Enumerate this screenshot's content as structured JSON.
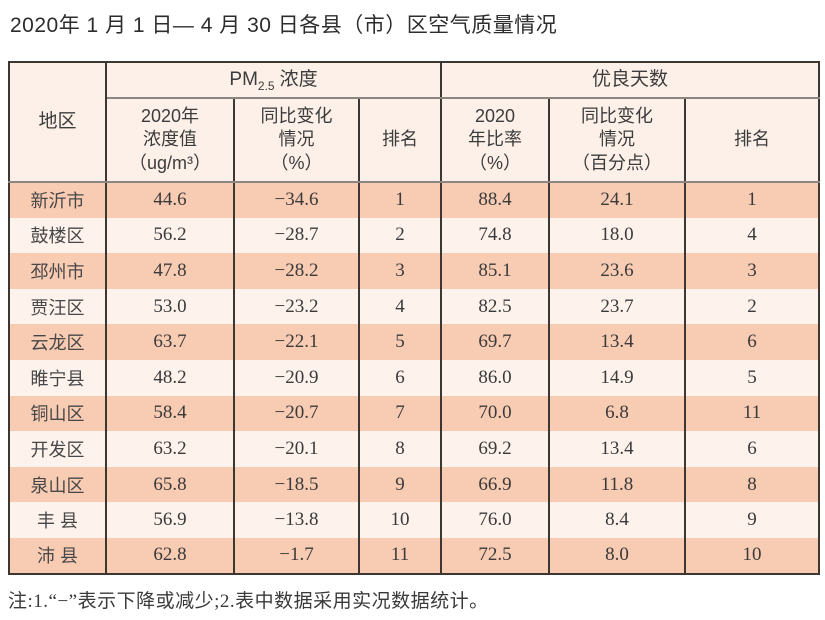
{
  "title": "2020年 1 月 1 日— 4 月 30 日各县（市）区空气质量情况",
  "table": {
    "region_header": "地区",
    "group_pm": {
      "prefix": "PM",
      "sub": "2.5",
      "suffix": "浓度"
    },
    "group_days": "优良天数",
    "sub_headers": {
      "pm_value": "2020年\n浓度值\n（ug/m³）",
      "pm_change": "同比变化\n情况\n（%）",
      "pm_rank": "排名",
      "days_ratio": "2020\n年比率\n（%）",
      "days_change": "同比变化\n情况\n（百分点）",
      "days_rank": "排名"
    },
    "rows": [
      [
        "新沂市",
        "44.6",
        "−34.6",
        "1",
        "88.4",
        "24.1",
        "1"
      ],
      [
        "鼓楼区",
        "56.2",
        "−28.7",
        "2",
        "74.8",
        "18.0",
        "4"
      ],
      [
        "邳州市",
        "47.8",
        "−28.2",
        "3",
        "85.1",
        "23.6",
        "3"
      ],
      [
        "贾汪区",
        "53.0",
        "−23.2",
        "4",
        "82.5",
        "23.7",
        "2"
      ],
      [
        "云龙区",
        "63.7",
        "−22.1",
        "5",
        "69.7",
        "13.4",
        "6"
      ],
      [
        "睢宁县",
        "48.2",
        "−20.9",
        "6",
        "86.0",
        "14.9",
        "5"
      ],
      [
        "铜山区",
        "58.4",
        "−20.7",
        "7",
        "70.0",
        "6.8",
        "11"
      ],
      [
        "开发区",
        "63.2",
        "−20.1",
        "8",
        "69.2",
        "13.4",
        "6"
      ],
      [
        "泉山区",
        "65.8",
        "−18.5",
        "9",
        "66.9",
        "11.8",
        "8"
      ],
      [
        "丰 县",
        "56.9",
        "−13.8",
        "10",
        "76.0",
        "8.4",
        "9"
      ],
      [
        "沛 县",
        "62.8",
        "−1.7",
        "11",
        "72.5",
        "8.0",
        "10"
      ]
    ]
  },
  "note": "注:1.“−”表示下降或减少;2.表中数据采用实况数据统计。",
  "colors": {
    "row_odd": "#f8cbb3",
    "row_even": "#fdf2ec",
    "header_bg": "#fcf0e8",
    "border_dark": "#3b3733",
    "border_gray": "#8a8580"
  }
}
